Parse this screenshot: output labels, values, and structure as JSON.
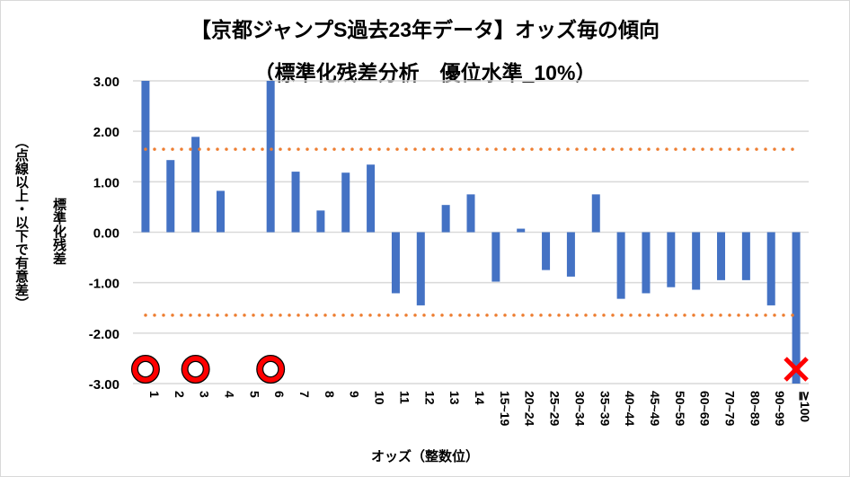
{
  "chart_data": {
    "type": "bar",
    "title": "【京都ジャンプS過去23年データ】オッズ毎の傾向",
    "subtitle": "（標準化残差分析　優位水準_10%）",
    "xlabel": "オッズ（整数位）",
    "ylabel": "標準化残差",
    "ylabel2": "（点線以上・以下で有意差）",
    "ylim": [
      -3,
      3
    ],
    "yticks": [
      3,
      2,
      1,
      0,
      -1,
      -2,
      -3
    ],
    "ytick_labels": [
      "3.00",
      "2.00",
      "1.00",
      "0.00",
      "-1.00",
      "-2.00",
      "-3.00"
    ],
    "grid": true,
    "categories": [
      "1",
      "2",
      "3",
      "4",
      "5",
      "6",
      "7",
      "8",
      "9",
      "10",
      "11",
      "12",
      "13",
      "14",
      "15~19",
      "20~24",
      "25~29",
      "30~34",
      "35~39",
      "40~44",
      "45~49",
      "50~59",
      "60~69",
      "70~79",
      "80~89",
      "90~99",
      "≧100"
    ],
    "values": [
      3.0,
      1.43,
      1.89,
      0.82,
      0,
      3.0,
      1.2,
      0.43,
      1.18,
      1.34,
      -1.21,
      -1.45,
      0.54,
      0.75,
      -0.98,
      0.07,
      -0.75,
      -0.88,
      0.75,
      -1.32,
      -1.21,
      -1.09,
      -1.14,
      -0.95,
      -0.95,
      -1.45,
      -3.0
    ],
    "threshold": 1.645,
    "markers": [
      {
        "category": "1",
        "symbol": "circle"
      },
      {
        "category": "3",
        "symbol": "circle"
      },
      {
        "category": "6",
        "symbol": "circle"
      },
      {
        "category": "≧100",
        "symbol": "cross"
      }
    ],
    "colors": {
      "bar": "#4472c4",
      "threshold": "#ed7d31",
      "marker": "#ff0000",
      "grid": "#d9d9d9"
    }
  }
}
